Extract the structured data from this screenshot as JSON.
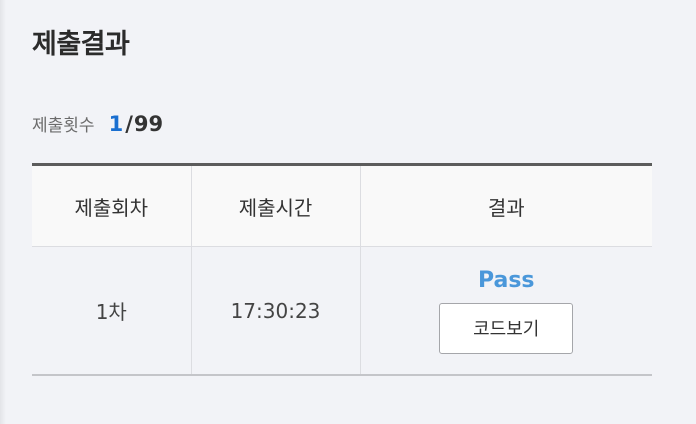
{
  "page": {
    "title": "제출결과"
  },
  "submission_count": {
    "label": "제출횟수",
    "current": "1",
    "separator": "/",
    "max": "99"
  },
  "table": {
    "columns": [
      "제출회차",
      "제출시간",
      "결과"
    ],
    "rows": [
      {
        "round": "1차",
        "time": "17:30:23",
        "status": "Pass",
        "code_button_label": "코드보기"
      }
    ]
  },
  "colors": {
    "accent_count": "#1a6fd0",
    "status_pass": "#4a97da",
    "background": "#f2f3f7"
  }
}
